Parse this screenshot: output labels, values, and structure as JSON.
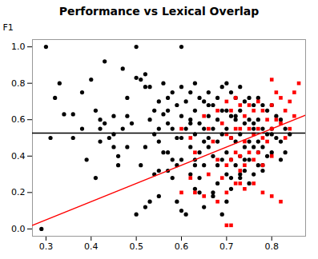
{
  "chart_data": {
    "type": "scatter",
    "title": "Performance vs Lexical Overlap",
    "ylabel": "F1",
    "xlim": [
      0.27,
      0.875
    ],
    "ylim": [
      -0.04,
      1.04
    ],
    "xticks": [
      0.3,
      0.4,
      0.5,
      0.6,
      0.7,
      0.8
    ],
    "yticks": [
      {
        "value": 0.0,
        "label": "0.0"
      },
      0.2,
      0.4,
      0.6,
      0.8,
      {
        "value": 1.0,
        "label": "1.0"
      }
    ],
    "series": [
      {
        "type": "scatter",
        "color": "#000000",
        "marker": "circle",
        "x": [
          0.29,
          0.3,
          0.31,
          0.32,
          0.33,
          0.34,
          0.36,
          0.36,
          0.38,
          0.38,
          0.39,
          0.4,
          0.41,
          0.41,
          0.42,
          0.42,
          0.42,
          0.43,
          0.43,
          0.44,
          0.45,
          0.45,
          0.45,
          0.46,
          0.46,
          0.47,
          0.47,
          0.48,
          0.48,
          0.48,
          0.49,
          0.5,
          0.5,
          0.5,
          0.51,
          0.51,
          0.52,
          0.52,
          0.52,
          0.52,
          0.53,
          0.53,
          0.53,
          0.54,
          0.54,
          0.54,
          0.55,
          0.55,
          0.55,
          0.55,
          0.55,
          0.56,
          0.56,
          0.56,
          0.57,
          0.57,
          0.57,
          0.57,
          0.57,
          0.58,
          0.58,
          0.58,
          0.58,
          0.59,
          0.59,
          0.59,
          0.59,
          0.6,
          0.6,
          0.6,
          0.6,
          0.6,
          0.6,
          0.61,
          0.61,
          0.61,
          0.62,
          0.62,
          0.62,
          0.62,
          0.62,
          0.63,
          0.63,
          0.63,
          0.63,
          0.63,
          0.63,
          0.64,
          0.64,
          0.64,
          0.64,
          0.64,
          0.65,
          0.65,
          0.65,
          0.65,
          0.65,
          0.66,
          0.66,
          0.66,
          0.66,
          0.66,
          0.67,
          0.67,
          0.67,
          0.67,
          0.67,
          0.68,
          0.68,
          0.68,
          0.68,
          0.68,
          0.69,
          0.69,
          0.69,
          0.69,
          0.69,
          0.7,
          0.7,
          0.7,
          0.7,
          0.7,
          0.7,
          0.71,
          0.71,
          0.71,
          0.71,
          0.71,
          0.71,
          0.72,
          0.72,
          0.72,
          0.72,
          0.72,
          0.73,
          0.73,
          0.73,
          0.73,
          0.73,
          0.73,
          0.74,
          0.74,
          0.74,
          0.74,
          0.74,
          0.75,
          0.75,
          0.75,
          0.75,
          0.75,
          0.76,
          0.76,
          0.76,
          0.76,
          0.76,
          0.77,
          0.77,
          0.77,
          0.77,
          0.77,
          0.78,
          0.78,
          0.78,
          0.78,
          0.78,
          0.79,
          0.79,
          0.79,
          0.8,
          0.8,
          0.8,
          0.8,
          0.81,
          0.81,
          0.82,
          0.82,
          0.82,
          0.83,
          0.83,
          0.84
        ],
        "values": [
          0.0,
          1.0,
          0.5,
          0.72,
          0.8,
          0.63,
          0.5,
          0.63,
          0.55,
          0.75,
          0.38,
          0.82,
          0.65,
          0.28,
          0.6,
          0.55,
          0.48,
          0.58,
          0.92,
          0.5,
          0.45,
          0.62,
          0.52,
          0.35,
          0.4,
          0.55,
          0.88,
          0.62,
          0.72,
          0.45,
          0.58,
          1.0,
          0.83,
          0.08,
          0.82,
          0.35,
          0.85,
          0.78,
          0.12,
          0.45,
          0.6,
          0.15,
          0.78,
          0.65,
          0.52,
          0.3,
          0.7,
          0.55,
          0.48,
          0.18,
          0.32,
          0.8,
          0.63,
          0.42,
          0.72,
          0.58,
          0.42,
          0.65,
          0.32,
          0.75,
          0.55,
          0.38,
          0.28,
          0.68,
          0.5,
          0.15,
          0.35,
          1.0,
          0.78,
          0.62,
          0.5,
          0.1,
          0.38,
          0.7,
          0.55,
          0.08,
          0.75,
          0.6,
          0.45,
          0.3,
          0.58,
          0.8,
          0.65,
          0.52,
          0.38,
          0.22,
          0.35,
          0.72,
          0.58,
          0.42,
          0.2,
          0.28,
          0.7,
          0.55,
          0.48,
          0.35,
          0.12,
          0.75,
          0.62,
          0.5,
          0.68,
          0.45,
          0.68,
          0.55,
          0.4,
          0.2,
          0.18,
          0.72,
          0.6,
          0.48,
          0.35,
          0.25,
          0.78,
          0.65,
          0.52,
          0.38,
          0.08,
          0.8,
          0.65,
          0.55,
          0.42,
          0.3,
          0.15,
          0.75,
          0.62,
          0.5,
          0.38,
          0.22,
          0.28,
          0.72,
          0.6,
          0.48,
          0.35,
          0.62,
          0.78,
          0.65,
          0.52,
          0.4,
          0.28,
          0.3,
          0.7,
          0.58,
          0.45,
          0.32,
          0.38,
          0.72,
          0.6,
          0.48,
          0.38,
          0.25,
          0.68,
          0.55,
          0.45,
          0.3,
          0.58,
          0.72,
          0.6,
          0.48,
          0.35,
          0.42,
          0.68,
          0.55,
          0.45,
          0.32,
          0.35,
          0.65,
          0.52,
          0.4,
          0.68,
          0.55,
          0.42,
          0.52,
          0.62,
          0.5,
          0.6,
          0.48,
          0.38,
          0.55,
          0.42,
          0.52
        ]
      },
      {
        "type": "scatter",
        "color": "#FF0000",
        "marker": "square",
        "x": [
          0.6,
          0.62,
          0.63,
          0.65,
          0.66,
          0.67,
          0.68,
          0.68,
          0.69,
          0.7,
          0.7,
          0.7,
          0.7,
          0.71,
          0.71,
          0.71,
          0.72,
          0.72,
          0.72,
          0.73,
          0.73,
          0.73,
          0.73,
          0.74,
          0.74,
          0.74,
          0.75,
          0.75,
          0.75,
          0.76,
          0.76,
          0.76,
          0.77,
          0.77,
          0.77,
          0.78,
          0.78,
          0.78,
          0.79,
          0.79,
          0.8,
          0.8,
          0.8,
          0.8,
          0.81,
          0.81,
          0.82,
          0.82,
          0.83,
          0.83,
          0.84,
          0.84,
          0.85,
          0.85,
          0.86,
          0.63,
          0.65,
          0.68,
          0.7,
          0.71,
          0.72,
          0.74,
          0.76,
          0.78,
          0.8,
          0.82,
          0.66,
          0.69,
          0.73,
          0.6,
          0.62
        ],
        "values": [
          0.55,
          0.5,
          0.42,
          0.62,
          0.55,
          0.48,
          0.65,
          0.38,
          0.58,
          0.7,
          0.52,
          0.35,
          0.2,
          0.65,
          0.5,
          0.38,
          0.72,
          0.55,
          0.42,
          0.68,
          0.55,
          0.4,
          0.25,
          0.62,
          0.48,
          0.35,
          0.68,
          0.55,
          0.42,
          0.65,
          0.52,
          0.38,
          0.7,
          0.55,
          0.42,
          0.65,
          0.5,
          0.35,
          0.6,
          0.48,
          0.82,
          0.68,
          0.55,
          0.4,
          0.75,
          0.6,
          0.72,
          0.58,
          0.65,
          0.5,
          0.7,
          0.55,
          0.75,
          0.62,
          0.8,
          0.2,
          0.18,
          0.15,
          0.02,
          0.02,
          0.25,
          0.22,
          0.25,
          0.2,
          0.18,
          0.15,
          0.3,
          0.28,
          0.32,
          0.2,
          0.28
        ]
      },
      {
        "type": "rule",
        "color": "#000000",
        "values": [
          0.526
        ]
      },
      {
        "type": "line",
        "color": "#FF0000",
        "x": [
          0.27,
          0.875
        ],
        "values": [
          0.02,
          0.625
        ]
      }
    ]
  }
}
